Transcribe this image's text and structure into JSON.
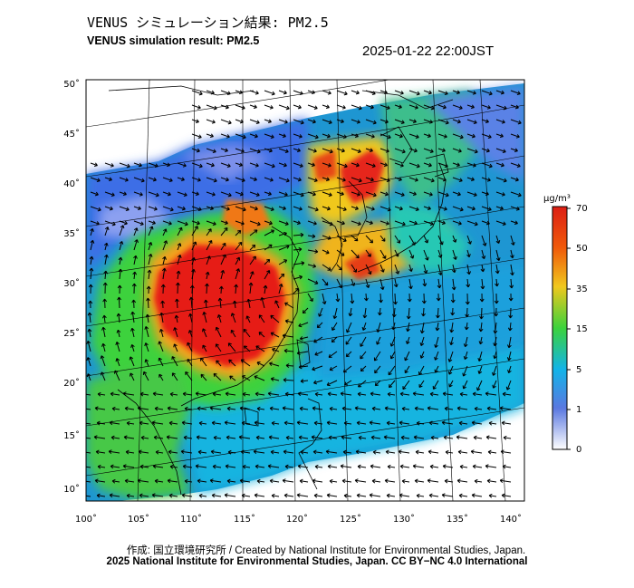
{
  "header": {
    "title_jp": "VENUS シミュレーション結果: PM2.5",
    "title_en": "VENUS simulation result: PM2.5",
    "datetime": "2025-01-22 22:00JST"
  },
  "map": {
    "lat_labels": [
      "50˚",
      "45˚",
      "40˚",
      "35˚",
      "30˚",
      "25˚",
      "20˚",
      "15˚",
      "10˚"
    ],
    "lon_labels": [
      "100˚",
      "105˚",
      "110˚",
      "115˚",
      "120˚",
      "125˚",
      "130˚",
      "135˚",
      "140˚"
    ]
  },
  "colorbar": {
    "unit": "μg/m³",
    "labels": [
      "70",
      "50",
      "35",
      "15",
      "5",
      "1",
      "0"
    ],
    "colors": [
      "#ffffff",
      "#5a78e0",
      "#12b4e8",
      "#3cd23c",
      "#f0c81e",
      "#f05a0a",
      "#dc1e14"
    ]
  },
  "footer": {
    "credit_line1": "作成: 国立環境研究所 / Created by National Institute for Environmental Studies, Japan.",
    "credit_line2": "2025 National Institute for Environmental Studies, Japan. CC BY−NC 4.0 International"
  }
}
